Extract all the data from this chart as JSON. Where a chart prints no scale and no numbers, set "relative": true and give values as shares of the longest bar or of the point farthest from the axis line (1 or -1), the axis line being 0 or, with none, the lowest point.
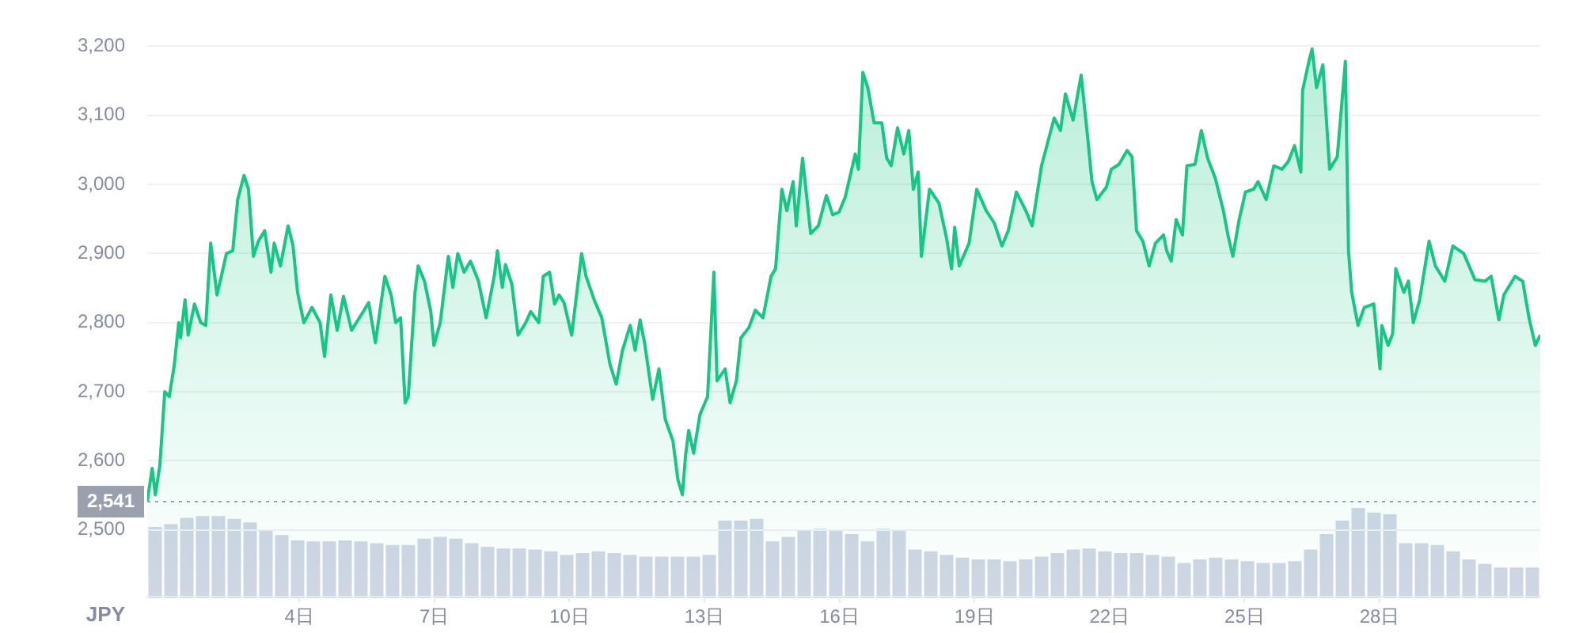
{
  "chart_data": [
    {
      "type": "area",
      "ylabel": "JPY",
      "grid": "y",
      "legend": false,
      "marker": "none",
      "xlim": [
        0.62,
        31.57
      ],
      "xticks": [
        {
          "value": 4,
          "label": "4日"
        },
        {
          "value": 7,
          "label": "7日"
        },
        {
          "value": 10,
          "label": "10日"
        },
        {
          "value": 13,
          "label": "13日"
        },
        {
          "value": 16,
          "label": "16日"
        },
        {
          "value": 19,
          "label": "19日"
        },
        {
          "value": 22,
          "label": "22日"
        },
        {
          "value": 25,
          "label": "25日"
        },
        {
          "value": 28,
          "label": "28日"
        }
      ],
      "ylim": [
        2404,
        3200
      ],
      "yticks": [
        {
          "value": 2500,
          "label": "2,500"
        },
        {
          "value": 2600,
          "label": "2,600"
        },
        {
          "value": 2700,
          "label": "2,700"
        },
        {
          "value": 2800,
          "label": "2,800"
        },
        {
          "value": 2900,
          "label": "2,900"
        },
        {
          "value": 3000,
          "label": "3,000"
        },
        {
          "value": 3100,
          "label": "3,100"
        },
        {
          "value": 3200,
          "label": "3,200"
        }
      ],
      "ref_lines": [
        {
          "axis": "y",
          "value": 2541,
          "label": "2,541",
          "color": "#9aa0ad",
          "line_style": "dotted"
        }
      ],
      "series": [
        {
          "color": "#16c784",
          "x": [
            0.62,
            0.73,
            0.8,
            0.9,
            1.01,
            1.11,
            1.22,
            1.32,
            1.36,
            1.46,
            1.53,
            1.67,
            1.81,
            1.92,
            2.03,
            2.17,
            2.28,
            2.38,
            2.52,
            2.63,
            2.77,
            2.87,
            2.98,
            3.09,
            3.23,
            3.37,
            3.44,
            3.58,
            3.75,
            3.86,
            3.96,
            4.1,
            4.28,
            4.46,
            4.56,
            4.7,
            4.84,
            4.98,
            5.16,
            5.44,
            5.54,
            5.69,
            5.9,
            6.04,
            6.14,
            6.25,
            6.35,
            6.42,
            6.57,
            6.64,
            6.78,
            6.92,
            6.99,
            7.13,
            7.31,
            7.41,
            7.52,
            7.66,
            7.8,
            7.98,
            8.15,
            8.33,
            8.4,
            8.51,
            8.58,
            8.72,
            8.86,
            9.03,
            9.14,
            9.32,
            9.42,
            9.56,
            9.67,
            9.77,
            9.88,
            10.05,
            10.27,
            10.37,
            10.55,
            10.72,
            10.9,
            11.04,
            11.18,
            11.35,
            11.46,
            11.57,
            11.67,
            11.85,
            11.99,
            12.13,
            12.3,
            12.41,
            12.51,
            12.58,
            12.65,
            12.76,
            12.9,
            13.07,
            13.21,
            13.28,
            13.46,
            13.57,
            13.71,
            13.81,
            13.99,
            14.13,
            14.3,
            14.48,
            14.58,
            14.72,
            14.83,
            14.97,
            15.04,
            15.18,
            15.36,
            15.53,
            15.71,
            15.85,
            15.99,
            16.13,
            16.35,
            16.42,
            16.52,
            16.63,
            16.77,
            16.94,
            17.05,
            17.15,
            17.29,
            17.43,
            17.54,
            17.64,
            17.75,
            17.82,
            18.0,
            18.21,
            18.38,
            18.49,
            18.56,
            18.66,
            18.88,
            19.05,
            19.26,
            19.44,
            19.61,
            19.75,
            19.93,
            20.14,
            20.28,
            20.49,
            20.77,
            20.91,
            21.02,
            21.19,
            21.37,
            21.51,
            21.61,
            21.72,
            21.93,
            22.04,
            22.21,
            22.39,
            22.5,
            22.6,
            22.74,
            22.88,
            23.02,
            23.2,
            23.27,
            23.37,
            23.48,
            23.62,
            23.72,
            23.9,
            24.04,
            24.18,
            24.35,
            24.53,
            24.63,
            24.74,
            24.88,
            25.02,
            25.2,
            25.3,
            25.48,
            25.65,
            25.83,
            25.97,
            26.11,
            26.25,
            26.29,
            26.43,
            26.5,
            26.6,
            26.74,
            26.89,
            27.06,
            27.24,
            27.31,
            27.38,
            27.52,
            27.66,
            27.87,
            28.01,
            28.05,
            28.19,
            28.29,
            28.36,
            28.54,
            28.64,
            28.75,
            28.89,
            29.1,
            29.24,
            29.45,
            29.63,
            29.87,
            30.12,
            30.34,
            30.48,
            30.65,
            30.76,
            31.01,
            31.18,
            31.32,
            31.46,
            31.57
          ],
          "values": [
            2541,
            2589,
            2551,
            2593,
            2700,
            2693,
            2738,
            2800,
            2778,
            2833,
            2782,
            2827,
            2800,
            2796,
            2915,
            2840,
            2871,
            2900,
            2904,
            2978,
            3013,
            2993,
            2896,
            2918,
            2933,
            2873,
            2915,
            2882,
            2940,
            2911,
            2844,
            2800,
            2822,
            2800,
            2751,
            2840,
            2789,
            2838,
            2789,
            2818,
            2829,
            2771,
            2867,
            2840,
            2800,
            2807,
            2684,
            2693,
            2844,
            2882,
            2860,
            2816,
            2767,
            2800,
            2896,
            2851,
            2900,
            2873,
            2889,
            2860,
            2807,
            2867,
            2904,
            2851,
            2884,
            2856,
            2782,
            2800,
            2816,
            2800,
            2867,
            2873,
            2827,
            2840,
            2829,
            2782,
            2900,
            2867,
            2833,
            2807,
            2740,
            2711,
            2760,
            2796,
            2760,
            2804,
            2771,
            2689,
            2733,
            2660,
            2629,
            2573,
            2551,
            2607,
            2644,
            2611,
            2667,
            2693,
            2873,
            2716,
            2733,
            2684,
            2716,
            2778,
            2793,
            2818,
            2807,
            2867,
            2878,
            2993,
            2962,
            3004,
            2940,
            3038,
            2929,
            2940,
            2984,
            2956,
            2960,
            2982,
            3044,
            3022,
            3162,
            3140,
            3089,
            3089,
            3038,
            3027,
            3082,
            3044,
            3078,
            2993,
            3018,
            2896,
            2993,
            2973,
            2922,
            2878,
            2938,
            2882,
            2915,
            2993,
            2962,
            2944,
            2911,
            2933,
            2989,
            2962,
            2940,
            3027,
            3096,
            3078,
            3131,
            3093,
            3158,
            3071,
            3004,
            2978,
            2996,
            3022,
            3029,
            3049,
            3040,
            2933,
            2918,
            2882,
            2915,
            2927,
            2904,
            2889,
            2949,
            2927,
            3027,
            3029,
            3078,
            3038,
            3009,
            2962,
            2927,
            2896,
            2949,
            2989,
            2993,
            3004,
            2978,
            3027,
            3022,
            3033,
            3056,
            3018,
            3136,
            3178,
            3196,
            3140,
            3173,
            3022,
            3040,
            3178,
            2904,
            2844,
            2796,
            2822,
            2827,
            2733,
            2796,
            2767,
            2784,
            2878,
            2844,
            2860,
            2800,
            2833,
            2918,
            2882,
            2860,
            2911,
            2900,
            2862,
            2860,
            2867,
            2804,
            2840,
            2867,
            2860,
            2807,
            2767,
            2782
          ]
        }
      ]
    },
    {
      "type": "bar",
      "relative": true,
      "legend": false,
      "categories": [
        null,
        null,
        null,
        null,
        null,
        null,
        null,
        null,
        null,
        null,
        null,
        null,
        null,
        null,
        null,
        null,
        null,
        null,
        null,
        null,
        null,
        null,
        null,
        null,
        null,
        null,
        null,
        null,
        null,
        null,
        null,
        null,
        null,
        null,
        null,
        null,
        null,
        null,
        null,
        null,
        null,
        null,
        null,
        null,
        null,
        null,
        null,
        null,
        null,
        null,
        null,
        null,
        null,
        null,
        null,
        null,
        null,
        null,
        null,
        null,
        null,
        null,
        null,
        null,
        null,
        null,
        null,
        null,
        null,
        null,
        null,
        null,
        null,
        null,
        null,
        null,
        null,
        null,
        null,
        null,
        null,
        null,
        null,
        null,
        null,
        null,
        null,
        null
      ],
      "series": [
        {
          "color": "#cfd6e4",
          "values": [
            0.79,
            0.82,
            0.89,
            0.91,
            0.91,
            0.88,
            0.84,
            0.75,
            0.7,
            0.64,
            0.63,
            0.63,
            0.64,
            0.63,
            0.61,
            0.59,
            0.59,
            0.66,
            0.68,
            0.66,
            0.61,
            0.57,
            0.55,
            0.55,
            0.54,
            0.52,
            0.48,
            0.5,
            0.52,
            0.5,
            0.48,
            0.46,
            0.46,
            0.46,
            0.46,
            0.48,
            0.86,
            0.86,
            0.88,
            0.63,
            0.68,
            0.75,
            0.77,
            0.75,
            0.71,
            0.63,
            0.77,
            0.75,
            0.54,
            0.52,
            0.48,
            0.45,
            0.43,
            0.43,
            0.41,
            0.43,
            0.46,
            0.5,
            0.54,
            0.55,
            0.52,
            0.5,
            0.5,
            0.48,
            0.46,
            0.39,
            0.43,
            0.45,
            0.43,
            0.41,
            0.39,
            0.39,
            0.41,
            0.54,
            0.71,
            0.86,
            1,
            0.95,
            0.93,
            0.61,
            0.61,
            0.59,
            0.52,
            0.43,
            0.38,
            0.34,
            0.34,
            0.34
          ]
        }
      ]
    }
  ]
}
